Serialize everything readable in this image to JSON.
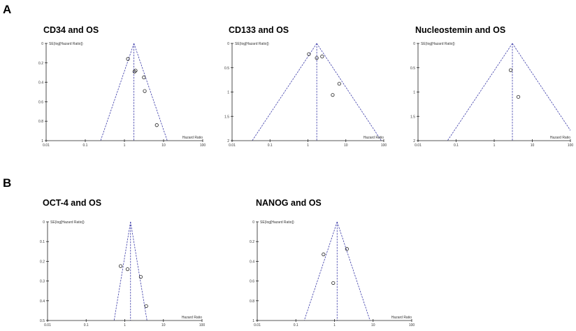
{
  "figure": {
    "letters": [
      "A",
      "B"
    ]
  },
  "colors": {
    "funnel": "#3a3aa8",
    "axis": "#222222",
    "point": "#222222"
  },
  "chart_data": [
    {
      "type": "scatter",
      "subtype": "funnel plot",
      "title": "CD34 and OS",
      "xlabel": "Hazard Ratio",
      "ylabel": "SE(log[Hazard Ratio])",
      "xscale": "log",
      "xlim": [
        0.01,
        100
      ],
      "xticks": [
        "0.01",
        "0.1",
        "1",
        "10",
        "100"
      ],
      "ylim": [
        0,
        1
      ],
      "yreversed": true,
      "yticks": [
        "0",
        "0.2",
        "0.4",
        "0.6",
        "0.8",
        "1"
      ],
      "pooled_hr": 1.75,
      "points": [
        {
          "hr": 1.23,
          "se": 0.16
        },
        {
          "hr": 1.93,
          "se": 0.28
        },
        {
          "hr": 1.8,
          "se": 0.29
        },
        {
          "hr": 3.14,
          "se": 0.35
        },
        {
          "hr": 3.3,
          "se": 0.49
        },
        {
          "hr": 6.7,
          "se": 0.84
        }
      ]
    },
    {
      "type": "scatter",
      "subtype": "funnel plot",
      "title": "CD133 and OS",
      "xlabel": "Hazard Ratio",
      "ylabel": "SE(log[Hazard Ratio])",
      "xscale": "log",
      "xlim": [
        0.01,
        100
      ],
      "xticks": [
        "0.01",
        "0.1",
        "1",
        "10",
        "100"
      ],
      "ylim": [
        0,
        2
      ],
      "yreversed": true,
      "yticks": [
        "0",
        "0.5",
        "1",
        "1.5",
        "2"
      ],
      "pooled_hr": 1.71,
      "points": [
        {
          "hr": 1.06,
          "se": 0.22
        },
        {
          "hr": 1.71,
          "se": 0.3
        },
        {
          "hr": 2.37,
          "se": 0.27
        },
        {
          "hr": 6.7,
          "se": 0.83
        },
        {
          "hr": 4.5,
          "se": 1.06
        }
      ]
    },
    {
      "type": "scatter",
      "subtype": "funnel plot",
      "title": "Nucleostemin and OS",
      "xlabel": "Hazard Ratio",
      "ylabel": "SE(log[Hazard Ratio])",
      "xscale": "log",
      "xlim": [
        0.01,
        100
      ],
      "xticks": [
        "0.01",
        "0.1",
        "1",
        "10",
        "100"
      ],
      "ylim": [
        0,
        2
      ],
      "yreversed": true,
      "yticks": [
        "0",
        "0.5",
        "1",
        "1.5",
        "2"
      ],
      "pooled_hr": 3.0,
      "points": [
        {
          "hr": 2.7,
          "se": 0.55
        },
        {
          "hr": 4.3,
          "se": 1.1
        }
      ]
    },
    {
      "type": "scatter",
      "subtype": "funnel plot",
      "title": "OCT-4 and OS",
      "xlabel": "Hazard Ratio",
      "ylabel": "SE(log[Hazard Ratio])",
      "xscale": "log",
      "xlim": [
        0.01,
        100
      ],
      "xticks": [
        "0.01",
        "0.1",
        "1",
        "10",
        "100"
      ],
      "ylim": [
        0,
        0.5
      ],
      "yreversed": true,
      "yticks": [
        "0",
        "0.1",
        "0.2",
        "0.3",
        "0.4",
        "0.5"
      ],
      "pooled_hr": 1.41,
      "points": [
        {
          "hr": 0.78,
          "se": 0.224
        },
        {
          "hr": 1.18,
          "se": 0.24
        },
        {
          "hr": 2.6,
          "se": 0.279
        },
        {
          "hr": 3.6,
          "se": 0.427
        }
      ]
    },
    {
      "type": "scatter",
      "subtype": "funnel plot",
      "title": "NANOG and OS",
      "xlabel": "Hazard Ratio",
      "ylabel": "SE(log[Hazard Ratio])",
      "xscale": "log",
      "xlim": [
        0.01,
        100
      ],
      "xticks": [
        "0.01",
        "0.1",
        "1",
        "10",
        "100"
      ],
      "ylim": [
        0,
        1
      ],
      "yreversed": true,
      "yticks": [
        "0",
        "0.2",
        "0.4",
        "0.6",
        "0.8",
        "1"
      ],
      "pooled_hr": 1.17,
      "points": [
        {
          "hr": 0.52,
          "se": 0.33
        },
        {
          "hr": 2.1,
          "se": 0.275
        },
        {
          "hr": 0.93,
          "se": 0.62
        }
      ]
    }
  ]
}
